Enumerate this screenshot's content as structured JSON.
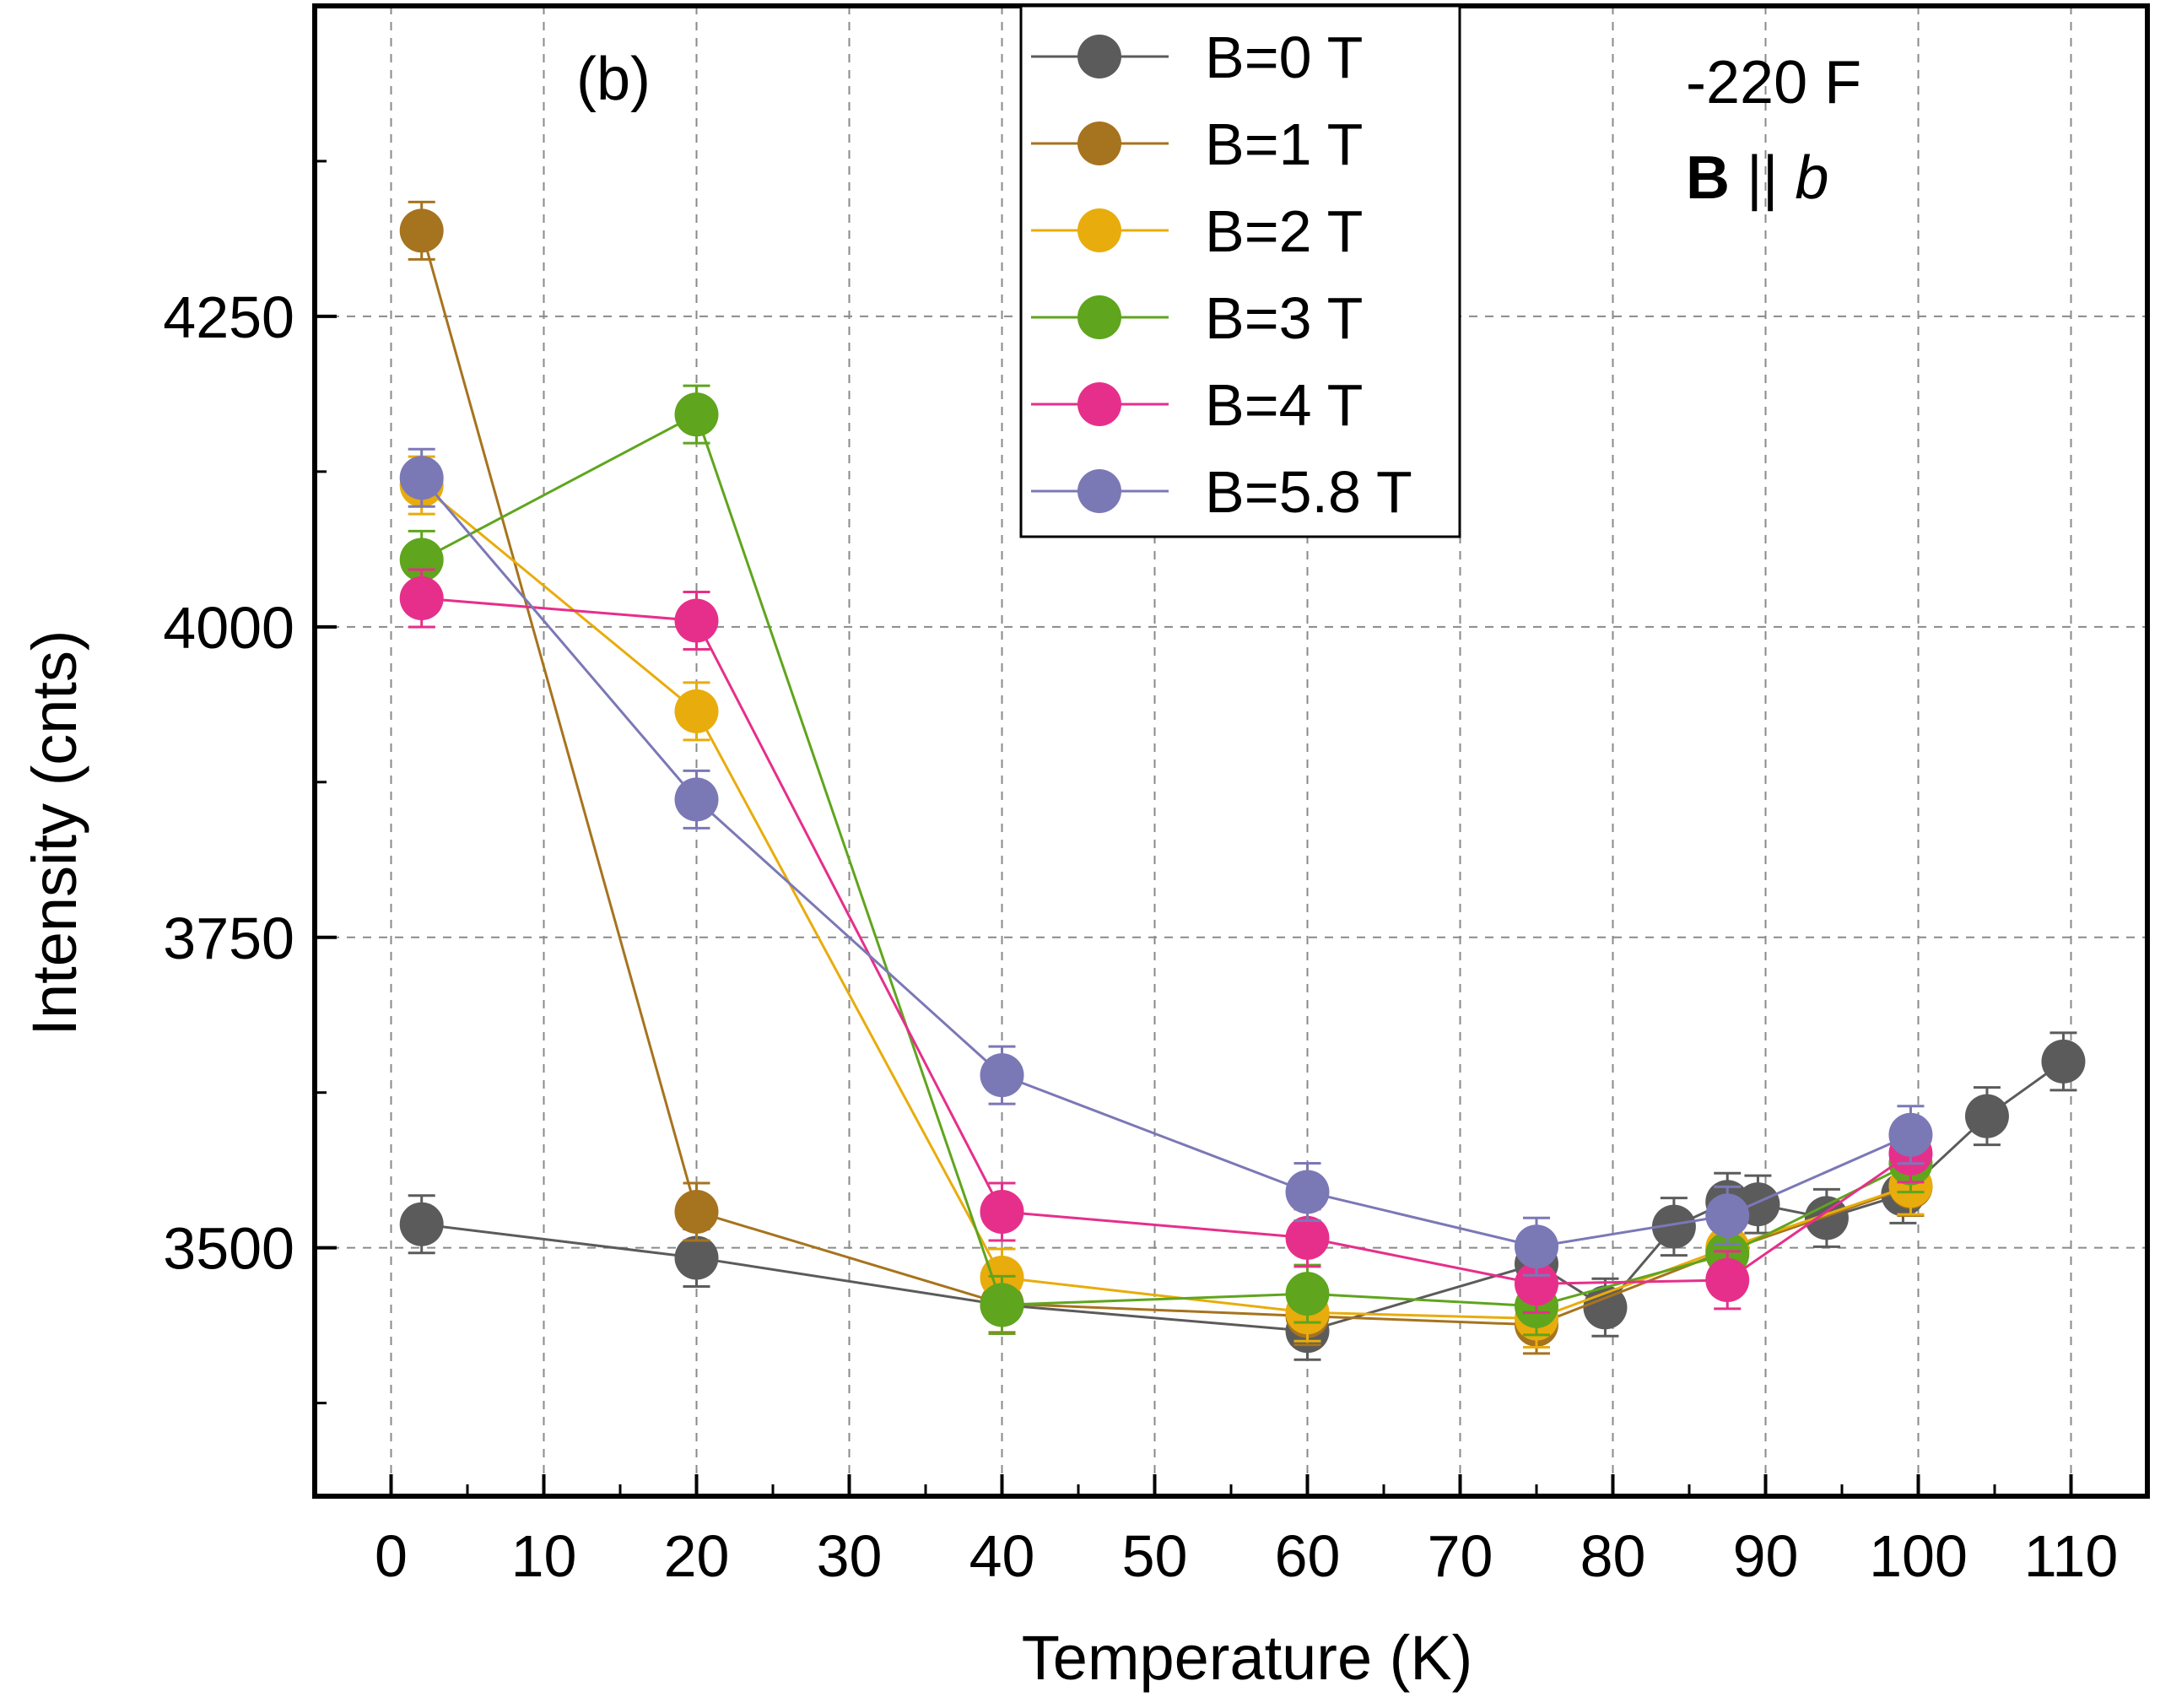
{
  "chart_data": {
    "type": "scatter",
    "panel_label": "(b)",
    "annotation": {
      "line1": "-220 F",
      "line2_bold": "B",
      "line2_mid": " || ",
      "line2_italic": "b"
    },
    "xlabel": "Temperature (K)",
    "ylabel": "Intensity (cnts)",
    "xlim": [
      -5,
      115
    ],
    "ylim": [
      3300,
      4500
    ],
    "x_ticks": [
      0,
      10,
      20,
      30,
      40,
      50,
      60,
      70,
      80,
      90,
      100,
      110
    ],
    "y_ticks": [
      3500,
      3750,
      4000,
      4250
    ],
    "grid": true,
    "legend_position": "top-center",
    "series": [
      {
        "name": "B=0 T",
        "color": "#5b5b5b",
        "points": [
          {
            "x": 2,
            "y": 3519
          },
          {
            "x": 20,
            "y": 3492
          },
          {
            "x": 40,
            "y": 3454
          },
          {
            "x": 60,
            "y": 3433
          },
          {
            "x": 75,
            "y": 3487
          },
          {
            "x": 79.5,
            "y": 3452
          },
          {
            "x": 84,
            "y": 3517
          },
          {
            "x": 87.5,
            "y": 3537
          },
          {
            "x": 89.5,
            "y": 3535
          },
          {
            "x": 94,
            "y": 3524
          },
          {
            "x": 99,
            "y": 3543
          },
          {
            "x": 104.5,
            "y": 3606
          },
          {
            "x": 109.5,
            "y": 3650
          }
        ]
      },
      {
        "name": "B=1 T",
        "color": "#a6731e",
        "points": [
          {
            "x": 2,
            "y": 4319
          },
          {
            "x": 20,
            "y": 3529
          },
          {
            "x": 40,
            "y": 3455
          },
          {
            "x": 60,
            "y": 3445
          },
          {
            "x": 75,
            "y": 3438
          },
          {
            "x": 87.5,
            "y": 3498
          },
          {
            "x": 99.5,
            "y": 3549
          }
        ]
      },
      {
        "name": "B=2 T",
        "color": "#e8ac0c",
        "points": [
          {
            "x": 2,
            "y": 4114
          },
          {
            "x": 20,
            "y": 3932
          },
          {
            "x": 40,
            "y": 3476
          },
          {
            "x": 60,
            "y": 3448
          },
          {
            "x": 75,
            "y": 3443
          },
          {
            "x": 87.5,
            "y": 3500
          },
          {
            "x": 99.5,
            "y": 3550
          }
        ]
      },
      {
        "name": "B=3 T",
        "color": "#5fa51d",
        "points": [
          {
            "x": 2,
            "y": 4054
          },
          {
            "x": 20,
            "y": 4171
          },
          {
            "x": 40,
            "y": 3454
          },
          {
            "x": 60,
            "y": 3463
          },
          {
            "x": 75,
            "y": 3453
          },
          {
            "x": 87.5,
            "y": 3495
          },
          {
            "x": 99.5,
            "y": 3568
          }
        ]
      },
      {
        "name": "B=4 T",
        "color": "#e62f8b",
        "points": [
          {
            "x": 2,
            "y": 4023
          },
          {
            "x": 20,
            "y": 4005
          },
          {
            "x": 40,
            "y": 3529
          },
          {
            "x": 60,
            "y": 3508
          },
          {
            "x": 75,
            "y": 3471
          },
          {
            "x": 87.5,
            "y": 3474
          },
          {
            "x": 99.5,
            "y": 3576
          }
        ]
      },
      {
        "name": "B=5.8 T",
        "color": "#7b78b6",
        "points": [
          {
            "x": 2,
            "y": 4120
          },
          {
            "x": 20,
            "y": 3861
          },
          {
            "x": 40,
            "y": 3639
          },
          {
            "x": 60,
            "y": 3545
          },
          {
            "x": 75,
            "y": 3501
          },
          {
            "x": 87.5,
            "y": 3526
          },
          {
            "x": 99.5,
            "y": 3591
          }
        ]
      }
    ]
  }
}
